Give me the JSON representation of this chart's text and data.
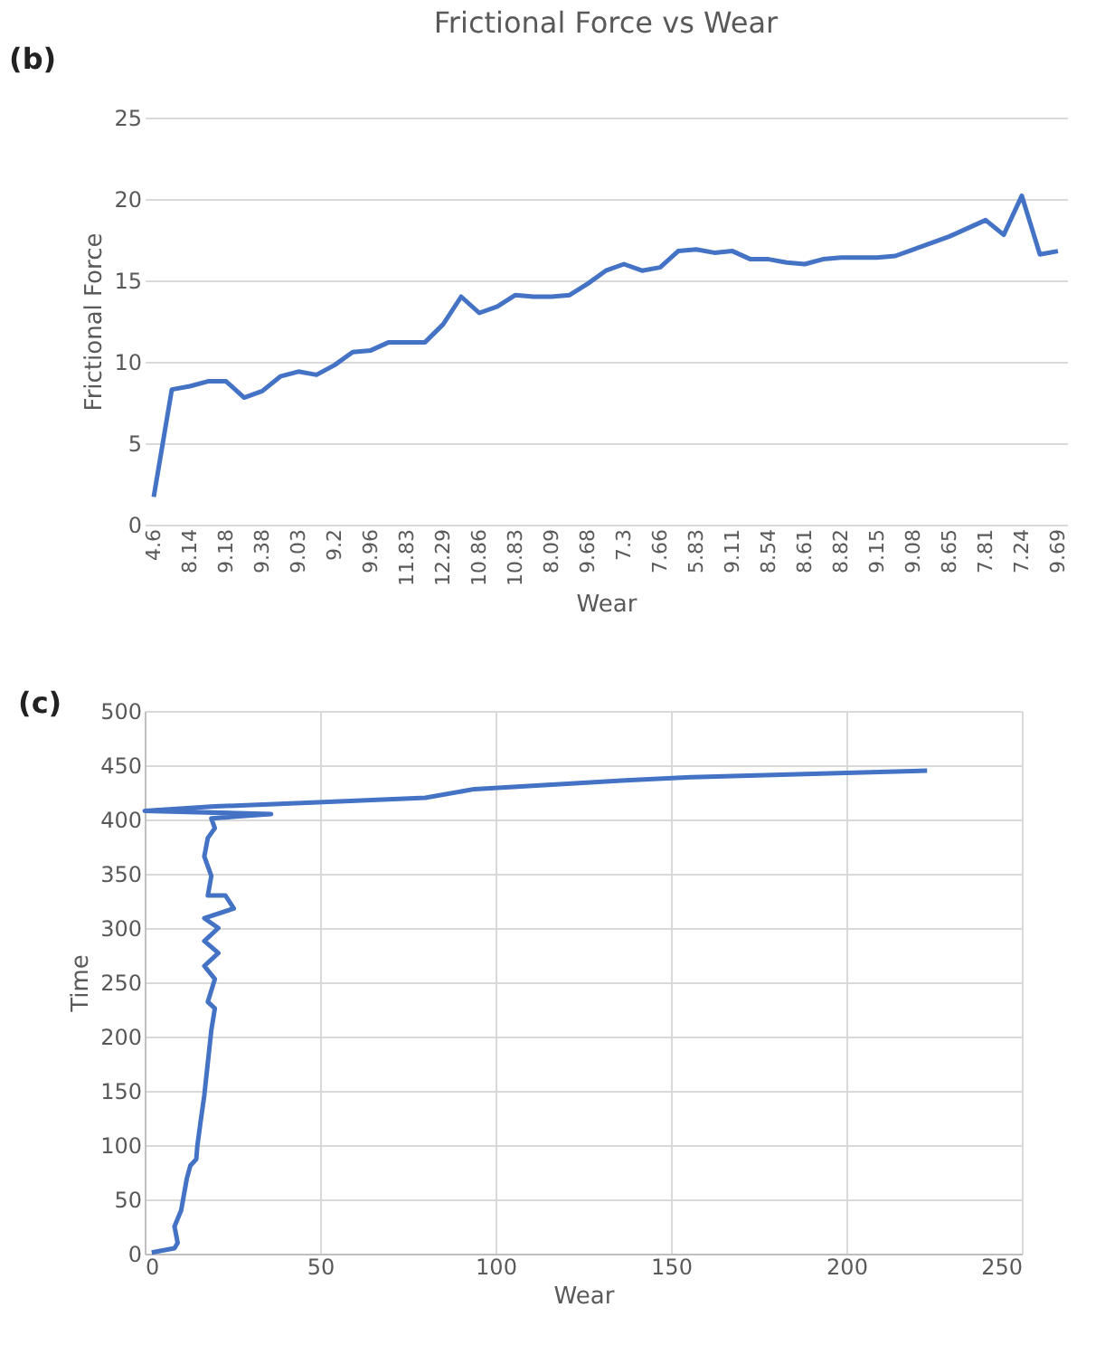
{
  "chart_data": [
    {
      "type": "line",
      "title": "Frictional Force vs Wear",
      "xlabel": "Wear",
      "ylabel": "Frictional Force",
      "annotations": [
        "(b)"
      ],
      "categories": [
        "4.6",
        null,
        "8.14",
        null,
        "9.18",
        null,
        "9.38",
        null,
        "9.03",
        null,
        "9.2",
        null,
        "9.96",
        null,
        "11.83",
        null,
        "12.29",
        null,
        "10.86",
        null,
        "10.83",
        null,
        "8.09",
        null,
        "9.68",
        null,
        "7.3",
        null,
        "7.66",
        null,
        "5.83",
        null,
        "9.11",
        null,
        "8.54",
        null,
        "8.61",
        null,
        "8.82",
        null,
        "9.15",
        null,
        "9.08",
        null,
        "8.65",
        null,
        "7.81",
        null,
        "7.24",
        null,
        "9.69"
      ],
      "series": [
        {
          "color": "#4472c4",
          "values": [
            1.7,
            8.3,
            8.5,
            8.8,
            8.8,
            7.8,
            8.2,
            9.1,
            9.4,
            9.2,
            9.8,
            10.6,
            10.7,
            11.2,
            11.2,
            11.2,
            12.3,
            14.0,
            13.0,
            13.4,
            14.1,
            14.0,
            14.0,
            14.1,
            14.8,
            15.6,
            16.0,
            15.6,
            15.8,
            16.8,
            16.9,
            16.7,
            16.8,
            16.3,
            16.3,
            16.1,
            16.0,
            16.3,
            16.4,
            16.4,
            16.4,
            16.5,
            16.9,
            17.3,
            17.7,
            18.2,
            18.7,
            17.8,
            20.2,
            16.6,
            16.8
          ]
        }
      ],
      "ylim": [
        0,
        25
      ],
      "yticks": [
        0,
        5,
        10,
        15,
        20,
        25
      ],
      "grid": "y"
    },
    {
      "type": "line",
      "xlabel": "Wear",
      "ylabel": "Time",
      "annotations": [
        "(c)"
      ],
      "series": [
        {
          "color": "#4472c4",
          "x": [
            2,
            8.5,
            9.4,
            8.5,
            10.4,
            12,
            13,
            14.7,
            15,
            16,
            17,
            18,
            19,
            20,
            18,
            20,
            17,
            21,
            17,
            21,
            17,
            25.4,
            23,
            18,
            19,
            17,
            18,
            20,
            19,
            36,
            0,
            20,
            51,
            80,
            94,
            137,
            156,
            200,
            223
          ],
          "values": [
            1,
            5,
            10,
            25,
            40,
            69,
            81,
            87,
            99,
            123,
            146,
            176,
            206,
            226,
            232,
            253,
            265,
            277,
            288,
            300,
            309,
            318,
            330,
            330,
            348,
            366,
            383,
            392,
            401,
            405,
            408,
            412,
            416,
            420,
            428,
            436,
            439,
            443,
            445
          ]
        }
      ],
      "xlim": [
        0,
        250
      ],
      "xticks": [
        0,
        50,
        100,
        150,
        200,
        250
      ],
      "ylim": [
        0,
        500
      ],
      "yticks": [
        0,
        50,
        100,
        150,
        200,
        250,
        300,
        350,
        400,
        450,
        500
      ],
      "grid": true
    }
  ]
}
